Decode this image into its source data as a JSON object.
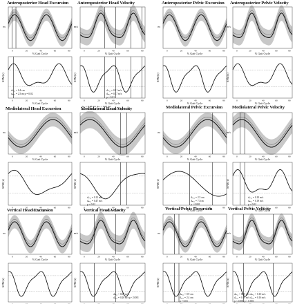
{
  "figure": {
    "x_axis_label": "% Gait Cycle",
    "spm_ylabel": "SPM{t}",
    "colors": {
      "band": "#c8c8c8",
      "line": "#1a1a1a",
      "axis": "#444444"
    },
    "panels": [
      {
        "id": "ap-head",
        "titles": [
          "Anteroposterior Head Excursion",
          "Anteroposterior Head Velocity"
        ],
        "units": [
          "m",
          "m/s"
        ],
        "exc_xticks": [
          "0",
          "20",
          "40",
          "60",
          "80"
        ],
        "exc_annot": [
          "dₘₐₓ = 0.4 cm",
          "dₘₐₓ = 2.5cm p = 0.02"
        ],
        "vel_annot": [
          "dₘₐₓ = 0.11 m/s",
          "dₘₐₓ = 0.37 m/s",
          "p = 0.01",
          "dₘₐₓ = 0.08 m/s   dₘₐₓ = 0.08 m/s",
          "dₘₐₓ = 0.34 m/s p < 0.001   dₘₐₓ = 0.32 m/s p < 0.001"
        ]
      },
      {
        "id": "ap-pelvis",
        "titles": [
          "Anteroposterior Pelvic Excursion",
          "Anteroposterior Pelvic Velocity"
        ],
        "units": [
          "m",
          "m/s"
        ],
        "exc_annot": [],
        "vel_annot": []
      },
      {
        "id": "ml-head",
        "titles": [
          "Mediolateral Head Excursion",
          "Mediolateral Head Velocity"
        ],
        "units": [
          "m",
          "m/s"
        ],
        "exc_annot": [],
        "vel_annot": [
          "dₘₐₓ = 0.12 m/s",
          "dₘₐₓ = 0.47 m/s",
          "p = 0.02"
        ]
      },
      {
        "id": "ml-pelvis",
        "titles": [
          "Mediolateral Pelvic Excursion",
          "Mediolateral Pelvic Velocity"
        ],
        "units": [
          "m",
          "m/s"
        ],
        "exc_annot": [
          "dₘₐₓ = 2.5 cm",
          "dₘₐₓ = 7.5cm",
          "p < 0.001"
        ],
        "vel_annot": [
          "dₘₐₓ = 0.10 m/s",
          "dₘₐₓ = 0.19 m/s",
          "p = 0.02"
        ]
      },
      {
        "id": "v-head",
        "titles": [
          "Vertical Head Excursion",
          "Vertical Head Velocity"
        ],
        "units": [
          "m",
          "m/s"
        ],
        "exc_annot": [],
        "vel_annot": [
          "dₘₐₓ = 0.05 m/s",
          "dₘₐₓ = 0.26 m/s p < 0.001"
        ]
      },
      {
        "id": "v-pelvis",
        "titles": [
          "Vertical Pelvic Excursion",
          "Vertical Pelvic Velocity"
        ],
        "units": [
          "m",
          "m/s"
        ],
        "exc_annot": [
          "dₘₐₓ = 0.9 cm",
          "dₘₐₓ = 2.4 cm",
          "p = 0.01"
        ],
        "vel_annot": [
          "dₘₐₓ = 0.10 m/s   dₘₐₓ = 0.10 m/s",
          "dₘₐₓ = 0.18 m/s   dₘₐₓ = 0.16 m/s",
          "p < 0.001   p < 0.001"
        ]
      }
    ]
  }
}
